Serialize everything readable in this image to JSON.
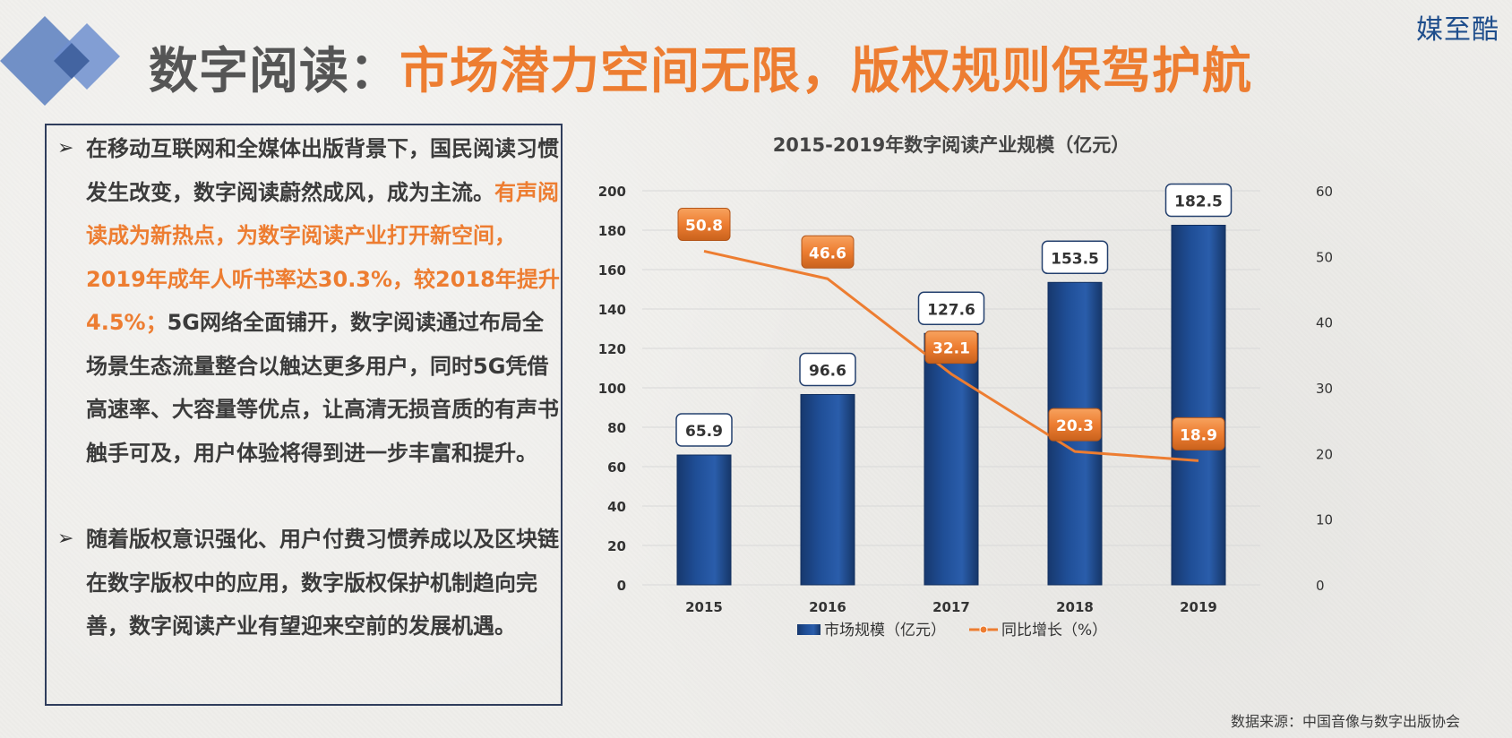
{
  "brand": "媒至酷",
  "title": {
    "prefix": "数字阅读：",
    "highlight": "市场潜力空间无限，版权规则保驾护航"
  },
  "textbox": {
    "bullet_symbol": "➢",
    "paragraph1": {
      "part1": "在移动互联网和全媒体出版背景下，国民阅读习惯发生改变，数字阅读蔚然成风，成为主流。",
      "highlight": "有声阅读成为新热点，为数字阅读产业打开新空间，2019年成年人听书率达30.3%，较2018年提升4.5%；",
      "part2": "5G网络全面铺开，数字阅读通过布局全场景生态流量整合以触达更多用户，同时5G凭借高速率、大容量等优点，让高清无损音质的有声书触手可及，用户体验将得到进一步丰富和提升。"
    },
    "paragraph2": "随着版权意识强化、用户付费习惯养成以及区块链在数字版权中的应用，数字版权保护机制趋向完善，数字阅读产业有望迎来空前的发展机遇。"
  },
  "source": "数据来源：中国音像与数字出版协会",
  "colors": {
    "bar": "#1f4e96",
    "line": "#ed7d31",
    "title_gray": "#555555",
    "accent_orange": "#ed7d31",
    "diamond": "#5a7fbf"
  },
  "chart_data": {
    "type": "bar+line",
    "title": "2015-2019年数字阅读产业规模（亿元）",
    "categories": [
      "2015",
      "2016",
      "2017",
      "2018",
      "2019"
    ],
    "series": [
      {
        "name": "市场规模（亿元）",
        "type": "bar",
        "axis": "left",
        "values": [
          65.9,
          96.6,
          127.6,
          153.5,
          182.5
        ]
      },
      {
        "name": "同比增长（%）",
        "type": "line",
        "axis": "right",
        "values": [
          50.8,
          46.6,
          32.1,
          20.3,
          18.9
        ]
      }
    ],
    "y_left": {
      "min": 0,
      "max": 200,
      "ticks": [
        "0",
        "20",
        "40",
        "60",
        "80",
        "100",
        "120",
        "140",
        "160",
        "180",
        "200"
      ]
    },
    "y_right": {
      "min": 0,
      "max": 60,
      "ticks": [
        "0",
        "10",
        "20",
        "30",
        "40",
        "50",
        "60"
      ]
    },
    "grid": true,
    "legend_position": "bottom"
  }
}
